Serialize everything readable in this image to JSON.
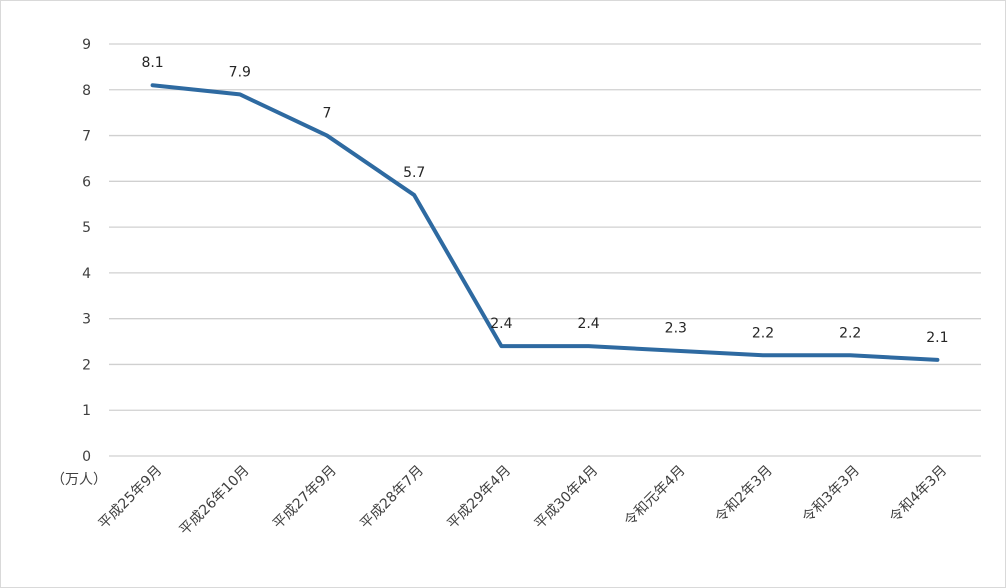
{
  "chart_data": {
    "type": "line",
    "title": "",
    "xlabel": "",
    "ylabel": "",
    "y_unit_label": "（万人）",
    "ylim": [
      0,
      9
    ],
    "yticks": [
      0,
      1,
      2,
      3,
      4,
      5,
      6,
      7,
      8,
      9
    ],
    "grid": true,
    "legend": "none",
    "categories": [
      "平成25年9月",
      "平成26年10月",
      "平成27年9月",
      "平成28年7月",
      "平成29年4月",
      "平成30年4月",
      "令和元年4月",
      "令和2年3月",
      "令和3年3月",
      "令和4年3月"
    ],
    "series": [
      {
        "values": [
          8.1,
          7.9,
          7,
          5.7,
          2.4,
          2.4,
          2.3,
          2.2,
          2.2,
          2.1
        ],
        "labels": [
          "8.1",
          "7.9",
          "7",
          "5.7",
          "2.4",
          "2.4",
          "2.3",
          "2.2",
          "2.2",
          "2.1"
        ],
        "color": "#2e6aa1"
      }
    ]
  }
}
